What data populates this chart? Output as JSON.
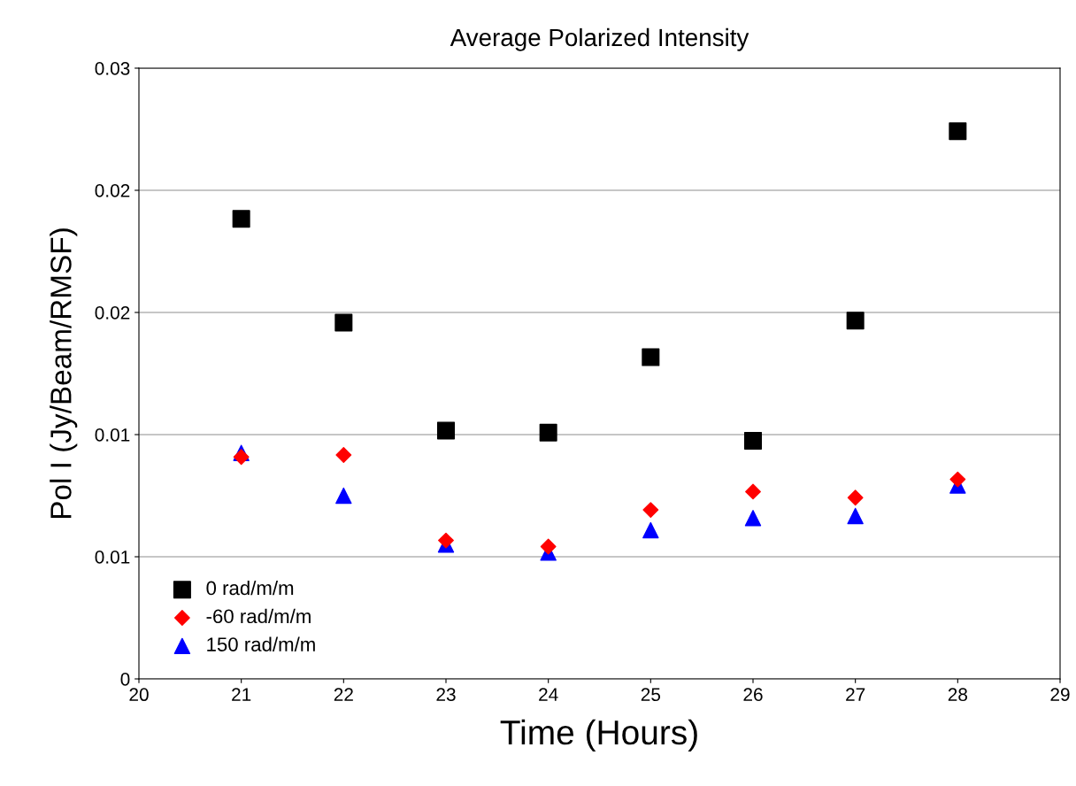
{
  "chart_data": {
    "type": "scatter",
    "title": "Average Polarized Intensity",
    "xlabel": "Time (Hours)",
    "ylabel": "Pol I (Jy/Beam/RMSF)",
    "x": [
      21,
      22,
      23,
      24,
      25,
      26,
      27,
      28
    ],
    "series": [
      {
        "name": "0 rad/m/m",
        "color": "#000000",
        "marker": "square",
        "values": [
          0.0226,
          0.0175,
          0.0122,
          0.0121,
          0.0158,
          0.0117,
          0.0176,
          0.0269
        ]
      },
      {
        "name": "-60 rad/m/m",
        "color": "#ff0000",
        "marker": "diamond",
        "values": [
          0.0109,
          0.011,
          0.0068,
          0.0065,
          0.0083,
          0.0092,
          0.0089,
          0.0098
        ]
      },
      {
        "name": "150 rad/m/m",
        "color": "#0000ff",
        "marker": "triangle",
        "values": [
          0.0111,
          0.009,
          0.0066,
          0.0062,
          0.0073,
          0.0079,
          0.008,
          0.0095
        ]
      }
    ],
    "xlim": [
      20,
      29
    ],
    "xticks": [
      20,
      21,
      22,
      23,
      24,
      25,
      26,
      27,
      28,
      29
    ],
    "ylim": [
      0,
      0.03
    ],
    "yticks": [
      0,
      {
        "value": 0.006,
        "label": "0.01"
      },
      {
        "value": 0.012,
        "label": "0.01"
      },
      {
        "value": 0.018,
        "label": "0.02"
      },
      {
        "value": 0.024,
        "label": "0.02"
      },
      0.03
    ],
    "grid": "y",
    "legend": "bottom left"
  }
}
